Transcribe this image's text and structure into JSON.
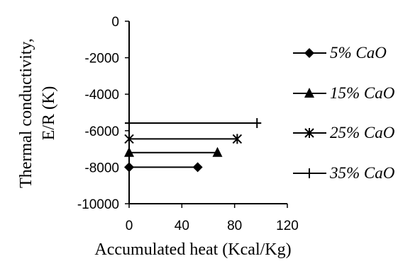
{
  "chart_data": {
    "type": "line",
    "title": "",
    "xlabel": "Accumulated heat (Kcal/Kg)",
    "ylabel_line1": "Thermal conductivity,",
    "ylabel_line2": "E/R (K)",
    "xlim": [
      0,
      120
    ],
    "ylim": [
      -10000,
      0
    ],
    "xticks": [
      0,
      40,
      80,
      120
    ],
    "yticks": [
      0,
      -2000,
      -4000,
      -6000,
      -8000,
      -10000
    ],
    "grid": false,
    "legend_position": "right",
    "series": [
      {
        "name": "5% CaO",
        "marker": "diamond",
        "x": [
          0,
          52
        ],
        "y": [
          -8000,
          -8000
        ]
      },
      {
        "name": "15% CaO",
        "marker": "triangle",
        "x": [
          0,
          67
        ],
        "y": [
          -7200,
          -7200
        ]
      },
      {
        "name": "25% CaO",
        "marker": "star",
        "x": [
          0,
          82
        ],
        "y": [
          -6450,
          -6450
        ]
      },
      {
        "name": "35% CaO",
        "marker": "plus",
        "x": [
          0,
          97
        ],
        "y": [
          -5580,
          -5580
        ]
      }
    ]
  }
}
